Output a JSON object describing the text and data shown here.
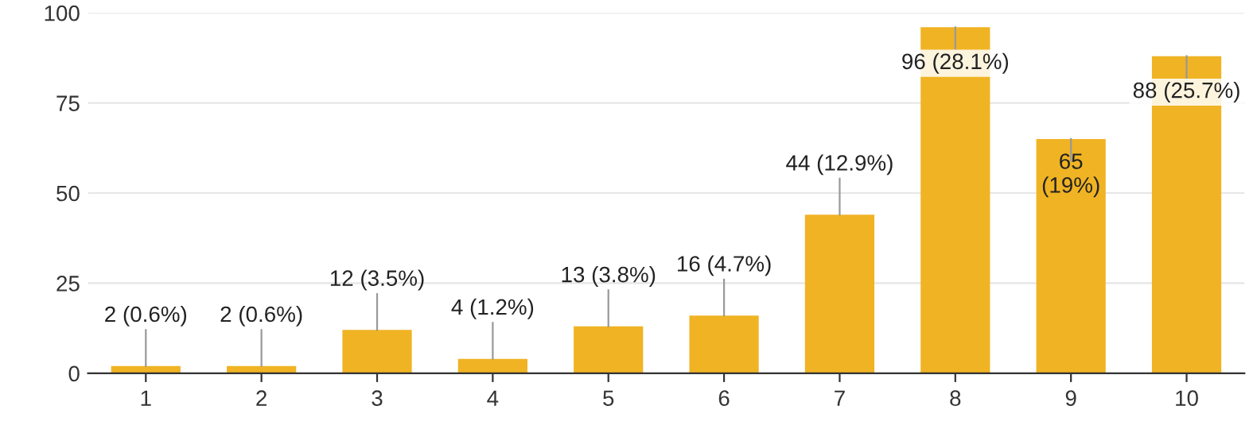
{
  "chart_data": {
    "type": "bar",
    "categories": [
      "1",
      "2",
      "3",
      "4",
      "5",
      "6",
      "7",
      "8",
      "9",
      "10"
    ],
    "values": [
      2,
      2,
      12,
      4,
      13,
      16,
      44,
      96,
      65,
      88
    ],
    "value_labels": [
      "2 (0.6%)",
      "2 (0.6%)",
      "12 (3.5%)",
      "4 (1.2%)",
      "13 (3.8%)",
      "16 (4.7%)",
      "44 (12.9%)",
      "96 (28.1%)",
      "65\n(19%)",
      "88 (25.7%)"
    ],
    "color": "#f0b323",
    "ylim": [
      0,
      100
    ],
    "yticks": [
      0,
      25,
      50,
      75,
      100
    ],
    "grid": "y"
  }
}
